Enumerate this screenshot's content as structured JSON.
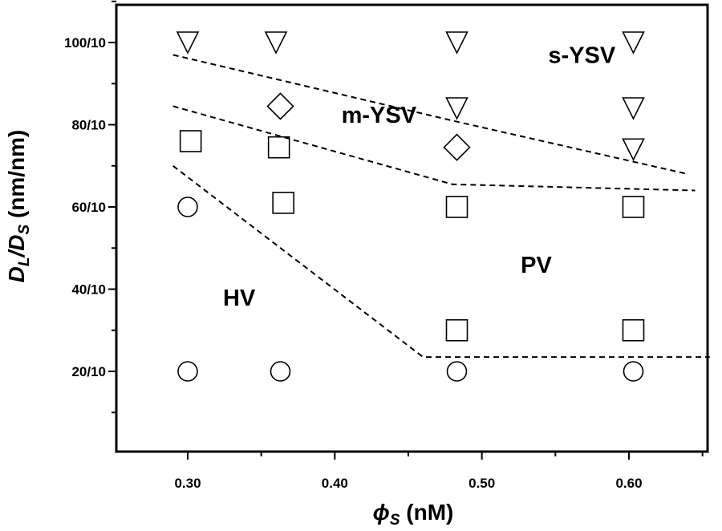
{
  "chart_data": {
    "type": "scatter",
    "title": "",
    "xlabel": {
      "symbol": "ϕ",
      "subscript": "S",
      "unit": "(nM)"
    },
    "ylabel": {
      "d_large": "D",
      "sub_large": "L",
      "slash": "/",
      "d_small": "D",
      "sub_small": "S",
      "unit": "(nm/nm)"
    },
    "xlim": [
      0.25,
      0.66
    ],
    "ylim": [
      0,
      110
    ],
    "x_ticks": [
      {
        "value": 0.3,
        "label": "0.30"
      },
      {
        "value": 0.4,
        "label": "0.40"
      },
      {
        "value": 0.5,
        "label": "0.50"
      },
      {
        "value": 0.6,
        "label": "0.60"
      }
    ],
    "x_minor_ticks": [
      0.35,
      0.45,
      0.55,
      0.65
    ],
    "y_ticks": [
      {
        "value": 20,
        "label": "20/10"
      },
      {
        "value": 40,
        "label": "40/10"
      },
      {
        "value": 60,
        "label": "60/10"
      },
      {
        "value": 80,
        "label": "80/10"
      },
      {
        "value": 100,
        "label": "100/10"
      }
    ],
    "y_minor_ticks": [
      10,
      30,
      50,
      70,
      90,
      110
    ],
    "series": [
      {
        "name": "HV",
        "marker": "circle",
        "points": [
          {
            "x": 0.3,
            "y": 60
          },
          {
            "x": 0.3,
            "y": 20
          },
          {
            "x": 0.363,
            "y": 20
          },
          {
            "x": 0.483,
            "y": 20
          },
          {
            "x": 0.603,
            "y": 20
          }
        ]
      },
      {
        "name": "PV",
        "marker": "square",
        "points": [
          {
            "x": 0.302,
            "y": 76
          },
          {
            "x": 0.362,
            "y": 74.5
          },
          {
            "x": 0.365,
            "y": 61
          },
          {
            "x": 0.483,
            "y": 60
          },
          {
            "x": 0.603,
            "y": 60
          },
          {
            "x": 0.483,
            "y": 30
          },
          {
            "x": 0.603,
            "y": 30
          }
        ]
      },
      {
        "name": "m-YSV",
        "marker": "diamond",
        "points": [
          {
            "x": 0.363,
            "y": 84.5
          },
          {
            "x": 0.483,
            "y": 74.5
          }
        ]
      },
      {
        "name": "s-YSV",
        "marker": "triangle-down",
        "points": [
          {
            "x": 0.3,
            "y": 100
          },
          {
            "x": 0.36,
            "y": 100
          },
          {
            "x": 0.483,
            "y": 100
          },
          {
            "x": 0.603,
            "y": 100
          },
          {
            "x": 0.483,
            "y": 84
          },
          {
            "x": 0.603,
            "y": 84
          },
          {
            "x": 0.603,
            "y": 74
          }
        ]
      }
    ],
    "boundaries": [
      {
        "name": "s-YSV / m-YSV boundary",
        "style": "dashed",
        "points": [
          {
            "x": 0.29,
            "y": 97
          },
          {
            "x": 0.48,
            "y": 81
          },
          {
            "x": 0.64,
            "y": 68
          }
        ]
      },
      {
        "name": "m-YSV / PV boundary",
        "style": "dashed",
        "points": [
          {
            "x": 0.29,
            "y": 84.5
          },
          {
            "x": 0.48,
            "y": 65.5
          },
          {
            "x": 0.645,
            "y": 64
          }
        ]
      },
      {
        "name": "HV / PV boundary",
        "style": "dashed",
        "points": [
          {
            "x": 0.29,
            "y": 70
          },
          {
            "x": 0.46,
            "y": 23.5
          },
          {
            "x": 0.655,
            "y": 23.5
          }
        ]
      }
    ],
    "annotations": [
      {
        "text": "s-YSV",
        "x": 0.568,
        "y": 95
      },
      {
        "text": "m-YSV",
        "x": 0.43,
        "y": 80.5
      },
      {
        "text": "PV",
        "x": 0.537,
        "y": 44
      },
      {
        "text": "HV",
        "x": 0.335,
        "y": 36
      }
    ],
    "grid": false,
    "legend": "none"
  }
}
